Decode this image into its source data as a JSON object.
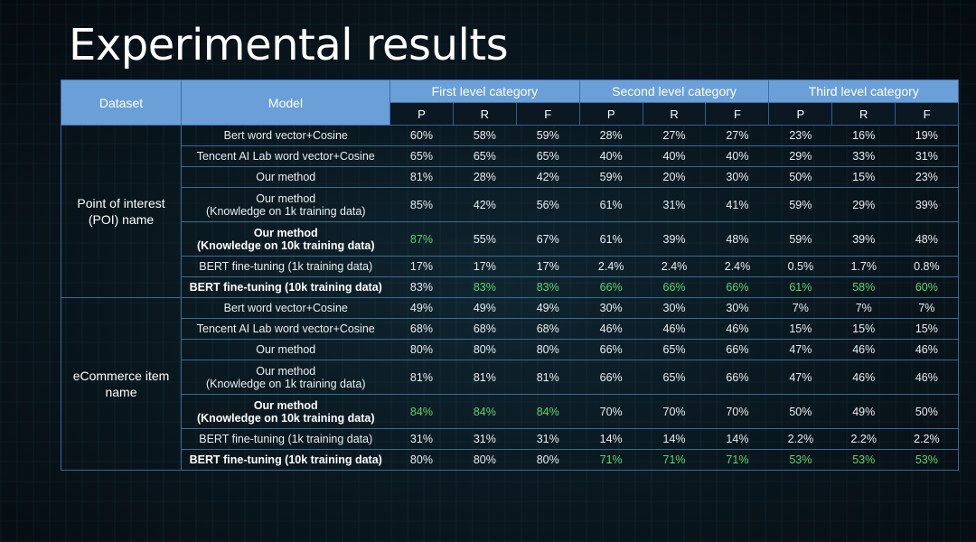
{
  "title": "Experimental results",
  "header": {
    "dataset": "Dataset",
    "model": "Model",
    "groups": [
      "First level category",
      "Second level category",
      "Third level category"
    ],
    "metrics": [
      "P",
      "R",
      "F",
      "P",
      "R",
      "F",
      "P",
      "R",
      "F"
    ]
  },
  "sections": [
    {
      "dataset": [
        "Point of interest",
        "(POI) name"
      ],
      "rows": [
        {
          "model": [
            "Bert word vector+Cosine"
          ],
          "bold": false,
          "values": [
            "60%",
            "58%",
            "59%",
            "28%",
            "27%",
            "27%",
            "23%",
            "16%",
            "19%"
          ],
          "green": []
        },
        {
          "model": [
            "Tencent AI Lab word vector+Cosine"
          ],
          "bold": false,
          "values": [
            "65%",
            "65%",
            "65%",
            "40%",
            "40%",
            "40%",
            "29%",
            "33%",
            "31%"
          ],
          "green": []
        },
        {
          "model": [
            "Our method"
          ],
          "bold": false,
          "values": [
            "81%",
            "28%",
            "42%",
            "59%",
            "20%",
            "30%",
            "50%",
            "15%",
            "23%"
          ],
          "green": []
        },
        {
          "model": [
            "Our method",
            "(Knowledge on 1k training data)"
          ],
          "bold": false,
          "values": [
            "85%",
            "42%",
            "56%",
            "61%",
            "31%",
            "41%",
            "59%",
            "29%",
            "39%"
          ],
          "green": []
        },
        {
          "model": [
            "Our method",
            "(Knowledge on 10k training data)"
          ],
          "bold": true,
          "values": [
            "87%",
            "55%",
            "67%",
            "61%",
            "39%",
            "48%",
            "59%",
            "39%",
            "48%"
          ],
          "green": [
            0
          ]
        },
        {
          "model": [
            "BERT fine-tuning (1k training data)"
          ],
          "bold": false,
          "values": [
            "17%",
            "17%",
            "17%",
            "2.4%",
            "2.4%",
            "2.4%",
            "0.5%",
            "1.7%",
            "0.8%"
          ],
          "green": []
        },
        {
          "model": [
            "BERT fine-tuning (10k training data)"
          ],
          "bold": true,
          "values": [
            "83%",
            "83%",
            "83%",
            "66%",
            "66%",
            "66%",
            "61%",
            "58%",
            "60%"
          ],
          "green": [
            1,
            2,
            3,
            4,
            5,
            6,
            7,
            8
          ]
        }
      ]
    },
    {
      "dataset": [
        "eCommerce item",
        "name"
      ],
      "rows": [
        {
          "model": [
            "Bert word vector+Cosine"
          ],
          "bold": false,
          "values": [
            "49%",
            "49%",
            "49%",
            "30%",
            "30%",
            "30%",
            "7%",
            "7%",
            "7%"
          ],
          "green": []
        },
        {
          "model": [
            "Tencent AI Lab word vector+Cosine"
          ],
          "bold": false,
          "values": [
            "68%",
            "68%",
            "68%",
            "46%",
            "46%",
            "46%",
            "15%",
            "15%",
            "15%"
          ],
          "green": []
        },
        {
          "model": [
            "Our method"
          ],
          "bold": false,
          "values": [
            "80%",
            "80%",
            "80%",
            "66%",
            "65%",
            "66%",
            "47%",
            "46%",
            "46%"
          ],
          "green": []
        },
        {
          "model": [
            "Our method",
            "(Knowledge on 1k training data)"
          ],
          "bold": false,
          "values": [
            "81%",
            "81%",
            "81%",
            "66%",
            "65%",
            "66%",
            "47%",
            "46%",
            "46%"
          ],
          "green": []
        },
        {
          "model": [
            "Our method",
            "(Knowledge on 10k training data)"
          ],
          "bold": true,
          "values": [
            "84%",
            "84%",
            "84%",
            "70%",
            "70%",
            "70%",
            "50%",
            "49%",
            "50%"
          ],
          "green": [
            0,
            1,
            2
          ]
        },
        {
          "model": [
            "BERT fine-tuning (1k training data)"
          ],
          "bold": false,
          "values": [
            "31%",
            "31%",
            "31%",
            "14%",
            "14%",
            "14%",
            "2.2%",
            "2.2%",
            "2.2%"
          ],
          "green": []
        },
        {
          "model": [
            "BERT fine-tuning (10k training data)"
          ],
          "bold": true,
          "values": [
            "80%",
            "80%",
            "80%",
            "71%",
            "71%",
            "71%",
            "53%",
            "53%",
            "53%"
          ],
          "green": [
            3,
            4,
            5,
            6,
            7,
            8
          ]
        }
      ]
    }
  ],
  "colors": {
    "header_bg": "#6a9fd8",
    "highlight": "#5ad66e",
    "text": "#e8eef2"
  }
}
